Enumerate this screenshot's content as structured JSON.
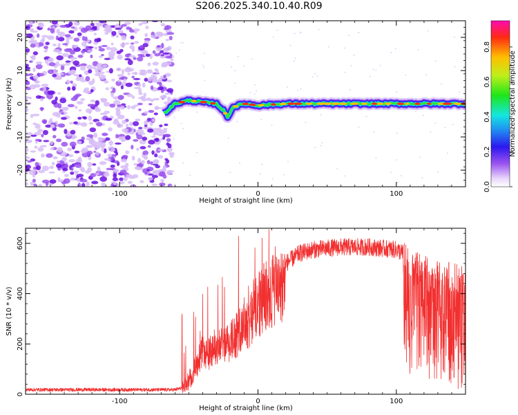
{
  "page": {
    "title": "S206.2025.340.10.40.R09"
  },
  "chart_data": [
    {
      "type": "heatmap",
      "name": "spectrogram",
      "xlabel": "Height of straight line (km)",
      "ylabel": "Frequency (Hz)",
      "xlim": [
        -168,
        150
      ],
      "ylim": [
        -25,
        25
      ],
      "xticks": [
        -100,
        0,
        100
      ],
      "xtick_labels": [
        "-100",
        "0",
        "100"
      ],
      "yticks": [
        -20,
        -10,
        0,
        10,
        20
      ],
      "ytick_labels": [
        "-20",
        "-10",
        "0",
        "10",
        "20"
      ],
      "noise_region_km": [
        -168,
        -62
      ],
      "track_start_km": -68,
      "ridge": {
        "x": [
          -68,
          -60,
          -50,
          -40,
          -30,
          -25,
          -22,
          -18,
          -10,
          0,
          20,
          50,
          100,
          150
        ],
        "y": [
          -3,
          0,
          1,
          0.5,
          0,
          -2,
          -4,
          -1,
          0,
          -0.5,
          0,
          0,
          0,
          0
        ]
      },
      "colorbar": {
        "label": "Normalized spectral amplitude",
        "range": [
          0,
          0.95
        ],
        "ticks": [
          0.0,
          0.2,
          0.4,
          0.6,
          0.8
        ],
        "tick_labels": [
          "0.0",
          "0.2",
          "0.4",
          "0.6",
          "0.8"
        ]
      }
    },
    {
      "type": "line",
      "name": "snr",
      "xlabel": "Height of straight line (km)",
      "ylabel": "SNR (10 * v/v)",
      "xlim": [
        -168,
        150
      ],
      "ylim": [
        0,
        660
      ],
      "xticks": [
        -100,
        0,
        100
      ],
      "xtick_labels": [
        "-100",
        "0",
        "100"
      ],
      "yticks": [
        0,
        200,
        400,
        600
      ],
      "ytick_labels": [
        "0",
        "200",
        "400",
        "600"
      ],
      "color": "#f23030",
      "envelope": {
        "x": [
          -168,
          -60,
          -55,
          -50,
          -40,
          -30,
          -20,
          -10,
          0,
          10,
          20,
          30,
          40,
          50,
          60,
          80,
          100,
          105,
          110,
          130,
          150
        ],
        "y": [
          18,
          18,
          25,
          60,
          180,
          200,
          240,
          320,
          400,
          450,
          520,
          560,
          575,
          580,
          585,
          585,
          575,
          560,
          520,
          470,
          460
        ]
      }
    }
  ]
}
